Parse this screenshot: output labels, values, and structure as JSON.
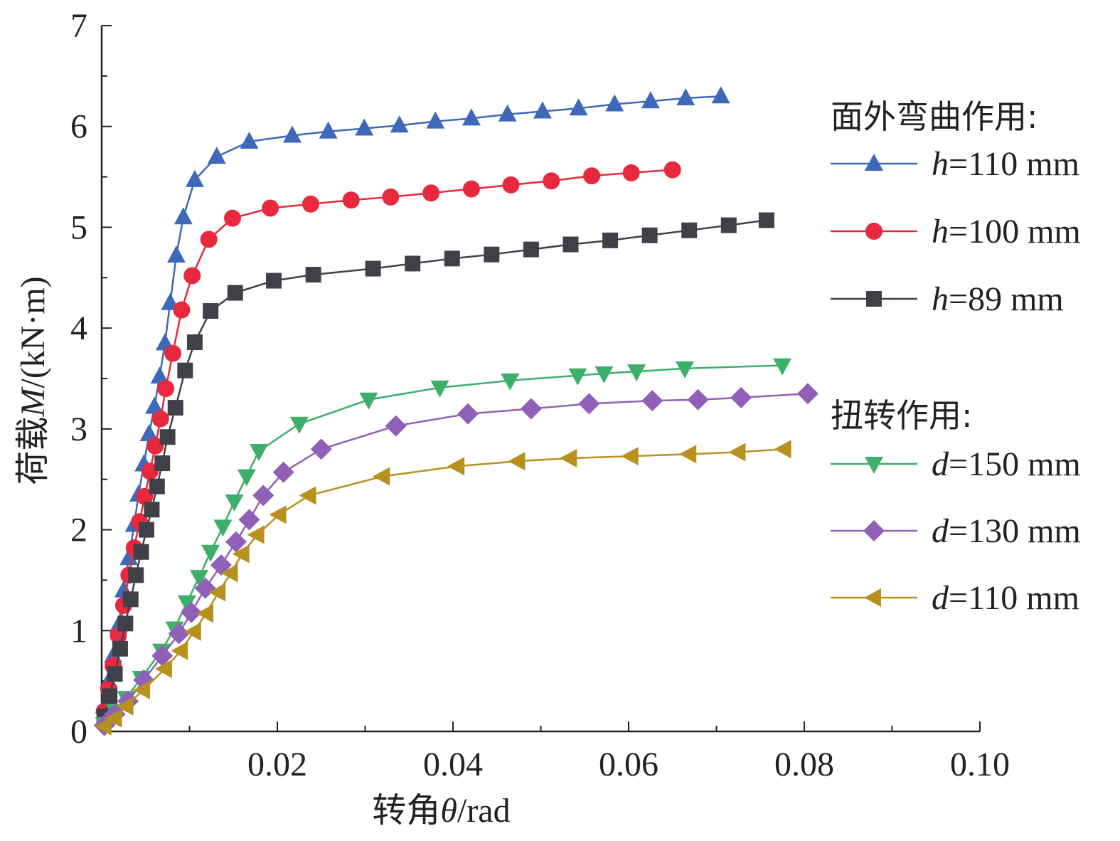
{
  "chart_data": {
    "type": "line",
    "xlabel": "转角θ/rad",
    "ylabel": "荷载M/(kN·m)",
    "xlim": [
      0,
      0.1
    ],
    "ylim": [
      0,
      7
    ],
    "x_ticks": [
      "0.02",
      "0.04",
      "0.06",
      "0.08",
      "0.10"
    ],
    "y_ticks": [
      "0",
      "1",
      "2",
      "3",
      "4",
      "5",
      "6",
      "7"
    ],
    "legend_position": "right",
    "legend_groups": [
      {
        "title": "面外弯曲作用:",
        "series": [
          0,
          1,
          2
        ]
      },
      {
        "title": "扭转作用:",
        "series": [
          3,
          4,
          5
        ]
      }
    ],
    "series": [
      {
        "name": "h=110 mm",
        "var": "h",
        "rest": "=110 mm",
        "color": "#3e68b8",
        "marker": "triangle-up",
        "points": [
          [
            0.0003,
            0.25
          ],
          [
            0.0008,
            0.5
          ],
          [
            0.0013,
            0.75
          ],
          [
            0.0019,
            1.05
          ],
          [
            0.0025,
            1.4
          ],
          [
            0.0031,
            1.72
          ],
          [
            0.0037,
            2.05
          ],
          [
            0.0042,
            2.35
          ],
          [
            0.0048,
            2.65
          ],
          [
            0.0054,
            2.95
          ],
          [
            0.006,
            3.22
          ],
          [
            0.0066,
            3.52
          ],
          [
            0.0072,
            3.85
          ],
          [
            0.0078,
            4.25
          ],
          [
            0.0085,
            4.72
          ],
          [
            0.0093,
            5.1
          ],
          [
            0.0106,
            5.47
          ],
          [
            0.0131,
            5.7
          ],
          [
            0.0168,
            5.85
          ],
          [
            0.0217,
            5.91
          ],
          [
            0.0258,
            5.95
          ],
          [
            0.0299,
            5.98
          ],
          [
            0.0339,
            6.01
          ],
          [
            0.038,
            6.05
          ],
          [
            0.0421,
            6.08
          ],
          [
            0.0462,
            6.12
          ],
          [
            0.0502,
            6.15
          ],
          [
            0.0543,
            6.18
          ],
          [
            0.0584,
            6.22
          ],
          [
            0.0625,
            6.25
          ],
          [
            0.0665,
            6.28
          ],
          [
            0.0705,
            6.3
          ]
        ]
      },
      {
        "name": "h=100 mm",
        "var": "h",
        "rest": "=100 mm",
        "color": "#e8283c",
        "marker": "circle",
        "points": [
          [
            0.0003,
            0.2
          ],
          [
            0.0008,
            0.42
          ],
          [
            0.0013,
            0.65
          ],
          [
            0.0019,
            0.95
          ],
          [
            0.0025,
            1.25
          ],
          [
            0.0031,
            1.55
          ],
          [
            0.0037,
            1.82
          ],
          [
            0.0043,
            2.08
          ],
          [
            0.0049,
            2.33
          ],
          [
            0.0055,
            2.58
          ],
          [
            0.0061,
            2.83
          ],
          [
            0.0067,
            3.1
          ],
          [
            0.0073,
            3.4
          ],
          [
            0.0081,
            3.75
          ],
          [
            0.0091,
            4.18
          ],
          [
            0.0103,
            4.52
          ],
          [
            0.0122,
            4.88
          ],
          [
            0.0149,
            5.09
          ],
          [
            0.0192,
            5.19
          ],
          [
            0.0238,
            5.23
          ],
          [
            0.0284,
            5.27
          ],
          [
            0.0329,
            5.3
          ],
          [
            0.0375,
            5.34
          ],
          [
            0.0421,
            5.38
          ],
          [
            0.0466,
            5.42
          ],
          [
            0.0512,
            5.46
          ],
          [
            0.0558,
            5.51
          ],
          [
            0.0603,
            5.54
          ],
          [
            0.065,
            5.57
          ]
        ]
      },
      {
        "name": "h=89 mm",
        "var": "h",
        "rest": "=89 mm",
        "color": "#3f4048",
        "marker": "square",
        "points": [
          [
            0.0003,
            0.15
          ],
          [
            0.0009,
            0.35
          ],
          [
            0.0015,
            0.57
          ],
          [
            0.0021,
            0.82
          ],
          [
            0.0027,
            1.07
          ],
          [
            0.0033,
            1.31
          ],
          [
            0.0039,
            1.55
          ],
          [
            0.0045,
            1.78
          ],
          [
            0.0051,
            2.0
          ],
          [
            0.0057,
            2.2
          ],
          [
            0.0063,
            2.43
          ],
          [
            0.0069,
            2.66
          ],
          [
            0.0075,
            2.92
          ],
          [
            0.0084,
            3.21
          ],
          [
            0.0095,
            3.58
          ],
          [
            0.0106,
            3.86
          ],
          [
            0.0124,
            4.17
          ],
          [
            0.0152,
            4.35
          ],
          [
            0.0196,
            4.47
          ],
          [
            0.0241,
            4.53
          ],
          [
            0.0309,
            4.59
          ],
          [
            0.0354,
            4.64
          ],
          [
            0.0399,
            4.69
          ],
          [
            0.0444,
            4.73
          ],
          [
            0.0489,
            4.78
          ],
          [
            0.0534,
            4.83
          ],
          [
            0.0579,
            4.87
          ],
          [
            0.0624,
            4.92
          ],
          [
            0.0669,
            4.97
          ],
          [
            0.0714,
            5.02
          ],
          [
            0.0757,
            5.07
          ]
        ]
      },
      {
        "name": "d=150 mm",
        "var": "d",
        "rest": "=150 mm",
        "color": "#3daf6a",
        "marker": "triangle-down",
        "points": [
          [
            0.0003,
            0.07
          ],
          [
            0.0015,
            0.2
          ],
          [
            0.0028,
            0.33
          ],
          [
            0.0045,
            0.53
          ],
          [
            0.0068,
            0.8
          ],
          [
            0.0083,
            1.02
          ],
          [
            0.0097,
            1.28
          ],
          [
            0.0111,
            1.53
          ],
          [
            0.0124,
            1.78
          ],
          [
            0.0138,
            2.03
          ],
          [
            0.0151,
            2.28
          ],
          [
            0.0165,
            2.53
          ],
          [
            0.0179,
            2.78
          ],
          [
            0.0225,
            3.05
          ],
          [
            0.0304,
            3.29
          ],
          [
            0.0385,
            3.41
          ],
          [
            0.0465,
            3.48
          ],
          [
            0.0542,
            3.53
          ],
          [
            0.0572,
            3.55
          ],
          [
            0.0609,
            3.57
          ],
          [
            0.0664,
            3.6
          ],
          [
            0.0775,
            3.63
          ]
        ]
      },
      {
        "name": "d=130 mm",
        "var": "d",
        "rest": "=130 mm",
        "color": "#9060b8",
        "marker": "diamond",
        "points": [
          [
            0.0003,
            0.06
          ],
          [
            0.0015,
            0.17
          ],
          [
            0.003,
            0.3
          ],
          [
            0.0048,
            0.51
          ],
          [
            0.0069,
            0.75
          ],
          [
            0.0088,
            0.97
          ],
          [
            0.0102,
            1.18
          ],
          [
            0.0118,
            1.42
          ],
          [
            0.0136,
            1.65
          ],
          [
            0.0153,
            1.88
          ],
          [
            0.0168,
            2.1
          ],
          [
            0.0184,
            2.34
          ],
          [
            0.0207,
            2.57
          ],
          [
            0.025,
            2.8
          ],
          [
            0.0335,
            3.03
          ],
          [
            0.0417,
            3.15
          ],
          [
            0.0489,
            3.2
          ],
          [
            0.0555,
            3.25
          ],
          [
            0.0627,
            3.28
          ],
          [
            0.0679,
            3.29
          ],
          [
            0.0728,
            3.31
          ],
          [
            0.0804,
            3.35
          ]
        ]
      },
      {
        "name": "d=110 mm",
        "var": "d",
        "rest": "=110 mm",
        "color": "#b8901e",
        "marker": "triangle-left",
        "points": [
          [
            0.0003,
            0.05
          ],
          [
            0.0015,
            0.13
          ],
          [
            0.0028,
            0.25
          ],
          [
            0.0047,
            0.41
          ],
          [
            0.0072,
            0.62
          ],
          [
            0.009,
            0.8
          ],
          [
            0.0105,
            0.99
          ],
          [
            0.0119,
            1.17
          ],
          [
            0.0133,
            1.38
          ],
          [
            0.0147,
            1.57
          ],
          [
            0.016,
            1.76
          ],
          [
            0.0177,
            1.95
          ],
          [
            0.0202,
            2.15
          ],
          [
            0.0236,
            2.34
          ],
          [
            0.032,
            2.53
          ],
          [
            0.0405,
            2.63
          ],
          [
            0.0474,
            2.68
          ],
          [
            0.0533,
            2.71
          ],
          [
            0.0603,
            2.73
          ],
          [
            0.0669,
            2.75
          ],
          [
            0.0725,
            2.77
          ],
          [
            0.0777,
            2.8
          ]
        ]
      }
    ]
  }
}
